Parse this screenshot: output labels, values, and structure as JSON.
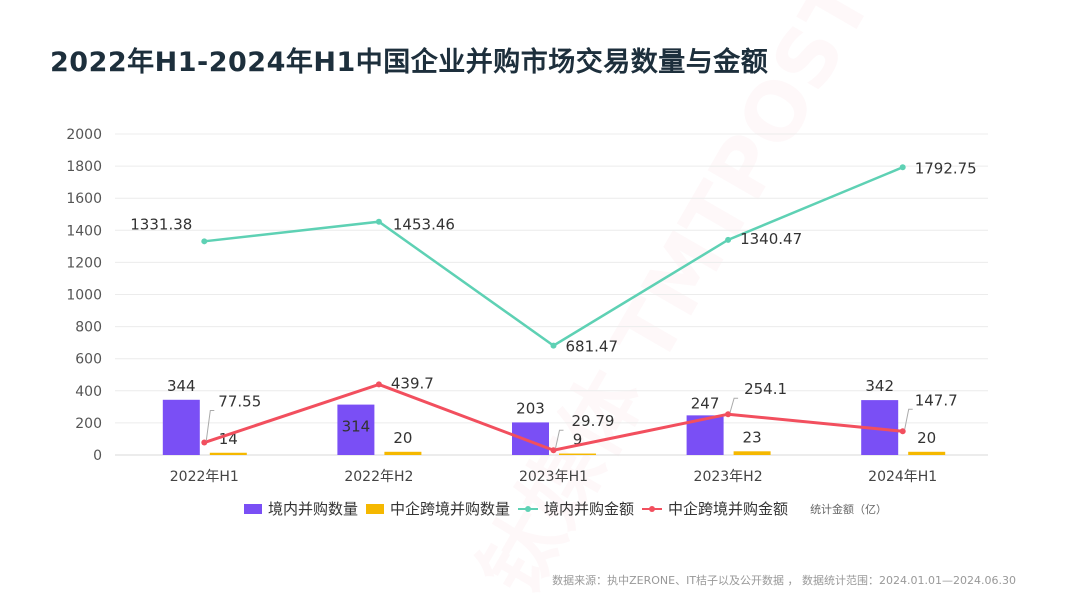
{
  "chart_data": {
    "type": "bar+line",
    "title": "2022年H1-2024年H1中国企业并购市场交易数量与金额",
    "categories": [
      "2022年H1",
      "2022年H2",
      "2023年H1",
      "2023年H2",
      "2024年H1"
    ],
    "ylim": [
      0,
      2000
    ],
    "yticks": [
      0,
      200,
      400,
      600,
      800,
      1000,
      1200,
      1400,
      1600,
      1800,
      2000
    ],
    "grid": true,
    "legend_position": "bottom",
    "unit_note": "统计金额（亿）",
    "series": [
      {
        "name": "境内并购数量",
        "type": "bar",
        "color": "#7a4ff5",
        "values": [
          344,
          314,
          203,
          247,
          342
        ],
        "labels": [
          "344",
          "314",
          "203",
          "247",
          "342"
        ]
      },
      {
        "name": "中企跨境并购数量",
        "type": "bar",
        "color": "#f5b800",
        "values": [
          14,
          20,
          9,
          23,
          20
        ],
        "labels": [
          "14",
          "20",
          "9",
          "23",
          "20"
        ]
      },
      {
        "name": "境内并购金额",
        "type": "line",
        "color": "#5ed1b4",
        "values": [
          1331.38,
          1453.46,
          681.47,
          1340.47,
          1792.75
        ],
        "labels": [
          "1331.38",
          "1453.46",
          "681.47",
          "1340.47",
          "1792.75"
        ]
      },
      {
        "name": "中企跨境并购金额",
        "type": "line",
        "color": "#f24f5e",
        "values": [
          77.55,
          439.7,
          29.79,
          254.1,
          147.7
        ],
        "labels": [
          "77.55",
          "439.7",
          "29.79",
          "254.1",
          "147.7"
        ]
      }
    ]
  },
  "source": "数据来源：执中ZERONE、IT桔子以及公开数据 ， 数据统计范围：2024.01.01—2024.06.30",
  "watermark": "钛媒体 TMTPOST"
}
